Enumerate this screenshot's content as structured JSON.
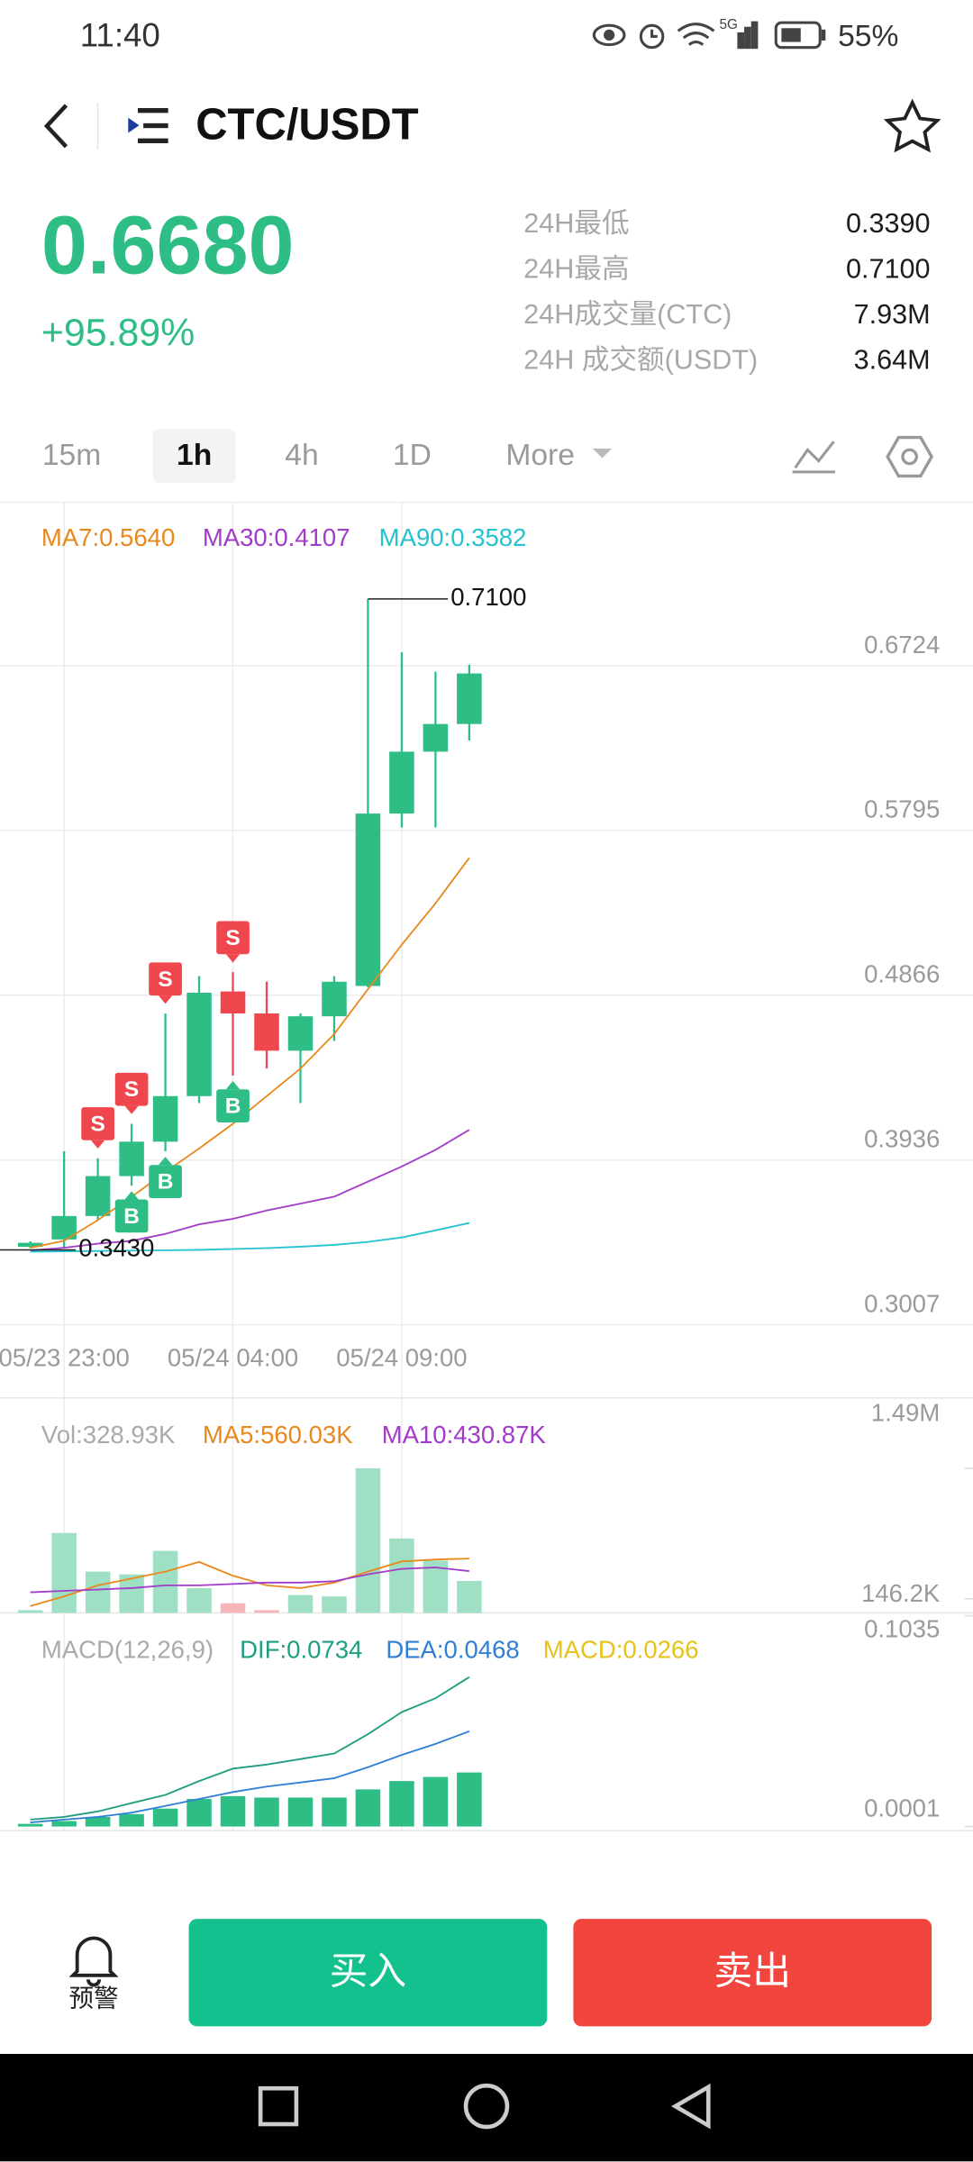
{
  "status_bar": {
    "time": "11:40",
    "network": "5G",
    "battery": "55%"
  },
  "header": {
    "pair": "CTC/USDT"
  },
  "ticker": {
    "price": "0.6680",
    "change": "+95.89%",
    "stats": [
      {
        "label": "24H最低",
        "value": "0.3390"
      },
      {
        "label": "24H最高",
        "value": "0.7100"
      },
      {
        "label": "24H成交量(CTC)",
        "value": "7.93M"
      },
      {
        "label": "24H 成交额(USDT)",
        "value": "3.64M"
      }
    ]
  },
  "tabs": {
    "items": [
      "15m",
      "1h",
      "4h",
      "1D",
      "More"
    ],
    "active": "1h"
  },
  "chart_data": {
    "type": "candlestick",
    "categories": [
      null,
      "05/23 23:00",
      null,
      null,
      null,
      null,
      "05/24 04:00",
      null,
      null,
      null,
      null,
      "05/24 09:00",
      null,
      null
    ],
    "candles": [
      {
        "open": 0.3447,
        "high": 0.3478,
        "low": 0.344,
        "close": 0.347
      },
      {
        "open": 0.3489,
        "high": 0.3986,
        "low": 0.3442,
        "close": 0.3621
      },
      {
        "open": 0.3621,
        "high": 0.3947,
        "low": 0.3598,
        "close": 0.3846
      },
      {
        "open": 0.3846,
        "high": 0.4141,
        "low": 0.3792,
        "close": 0.404
      },
      {
        "open": 0.404,
        "high": 0.4763,
        "low": 0.3986,
        "close": 0.4297
      },
      {
        "open": 0.4297,
        "high": 0.4973,
        "low": 0.4258,
        "close": 0.488
      },
      {
        "open": 0.4887,
        "high": 0.4996,
        "low": 0.4413,
        "close": 0.4763
      },
      {
        "open": 0.4763,
        "high": 0.4942,
        "low": 0.4452,
        "close": 0.4553
      },
      {
        "open": 0.4553,
        "high": 0.4763,
        "low": 0.4258,
        "close": 0.4747
      },
      {
        "open": 0.4747,
        "high": 0.4973,
        "low": 0.4608,
        "close": 0.4942
      },
      {
        "open": 0.4918,
        "high": 0.71,
        "low": 0.4911,
        "close": 0.589
      },
      {
        "open": 0.589,
        "high": 0.6799,
        "low": 0.5812,
        "close": 0.6239
      },
      {
        "open": 0.6239,
        "high": 0.669,
        "low": 0.5812,
        "close": 0.6395
      },
      {
        "open": 0.6395,
        "high": 0.6729,
        "low": 0.6302,
        "close": 0.668
      }
    ],
    "signals": [
      [],
      [],
      [
        "S"
      ],
      [
        "S",
        "B"
      ],
      [
        "S",
        "B"
      ],
      [],
      [
        "S",
        "B"
      ],
      [],
      [],
      [],
      [],
      [],
      [],
      []
    ],
    "up_color": "#2ebd85",
    "down_color": "#f0474f",
    "series": [
      {
        "name": "MA7:0.5640",
        "color": "#e8891d",
        "values": [
          0.3442,
          0.3481,
          0.3598,
          0.3729,
          0.3869,
          0.4002,
          0.4141,
          0.4297,
          0.4452,
          0.4647,
          0.49,
          0.5151,
          0.5384,
          0.564
        ]
      },
      {
        "name": "MA30:0.4107",
        "color": "#a23bc9",
        "values": [
          0.3427,
          0.3442,
          0.3465,
          0.3481,
          0.352,
          0.3574,
          0.3605,
          0.3652,
          0.3691,
          0.373,
          0.3815,
          0.39,
          0.3994,
          0.4107
        ]
      },
      {
        "name": "MA90:0.3582",
        "color": "#25c2d0",
        "values": [
          0.342,
          0.3422,
          0.3424,
          0.3426,
          0.3428,
          0.343,
          0.3435,
          0.344,
          0.3448,
          0.3458,
          0.3475,
          0.35,
          0.354,
          0.3582
        ]
      }
    ],
    "high_marker": {
      "value": 0.71,
      "label": "0.7100"
    },
    "low_marker": {
      "value": 0.343,
      "label": "0.3430"
    },
    "ylim": [
      0.3007,
      0.7288
    ],
    "yticks": [
      0.3007,
      0.3936,
      0.4866,
      0.5795,
      0.6724
    ],
    "grid": true,
    "volume": {
      "name": "Vol:328.93K",
      "up_color": "#9fe0c5",
      "down_color": "#f8b6ba",
      "values": [
        28380,
        823000,
        425700,
        397300,
        638600,
        255400,
        99300,
        28380,
        184500,
        170300,
        1490000,
        766300,
        539200,
        328930
      ],
      "ylim": [
        0,
        1490000
      ],
      "yticks": [
        {
          "value": 146200,
          "label": "146.2K"
        },
        {
          "value": 1490000,
          "label": "1.49M"
        }
      ],
      "series": [
        {
          "name": "MA5:560.03K",
          "color": "#e8891d",
          "values": [
            70950,
            170300,
            283800,
            354800,
            425700,
            525000,
            383100,
            283800,
            255400,
            312200,
            425700,
            530000,
            550000,
            560030
          ]
        },
        {
          "name": "MA10:430.87K",
          "color": "#a23bc9",
          "values": [
            212900,
            227000,
            241200,
            255400,
            283800,
            283800,
            298000,
            312200,
            312200,
            326400,
            397300,
            454100,
            468300,
            430870
          ]
        }
      ]
    },
    "macd": {
      "name": "MACD(12,26,9)",
      "ylim": [
        0.0001,
        0.1035
      ],
      "yticks": [
        0.0001,
        0.1035
      ],
      "series": [
        {
          "name": "DIF:0.0734",
          "color": "#1f9e82",
          "values": [
            0.0035,
            0.0048,
            0.0075,
            0.0116,
            0.0156,
            0.0224,
            0.0285,
            0.0305,
            0.0332,
            0.0359,
            0.0454,
            0.0562,
            0.063,
            0.0734
          ]
        },
        {
          "name": "DEA:0.0468",
          "color": "#2f7fd6",
          "values": [
            0.0021,
            0.0035,
            0.0048,
            0.0069,
            0.0102,
            0.0136,
            0.017,
            0.0197,
            0.0217,
            0.0238,
            0.0292,
            0.0352,
            0.0406,
            0.0468
          ]
        },
        {
          "name": "MACD:0.0266",
          "color": "#e6c21a",
          "bar_color": "#2ebd85",
          "values": [
            0.0014,
            0.0028,
            0.0048,
            0.0062,
            0.0089,
            0.0136,
            0.015,
            0.0143,
            0.0143,
            0.0143,
            0.0183,
            0.0224,
            0.0244,
            0.0266
          ]
        }
      ]
    }
  },
  "footer": {
    "alert": "预警",
    "buy": "买入",
    "sell": "卖出"
  }
}
